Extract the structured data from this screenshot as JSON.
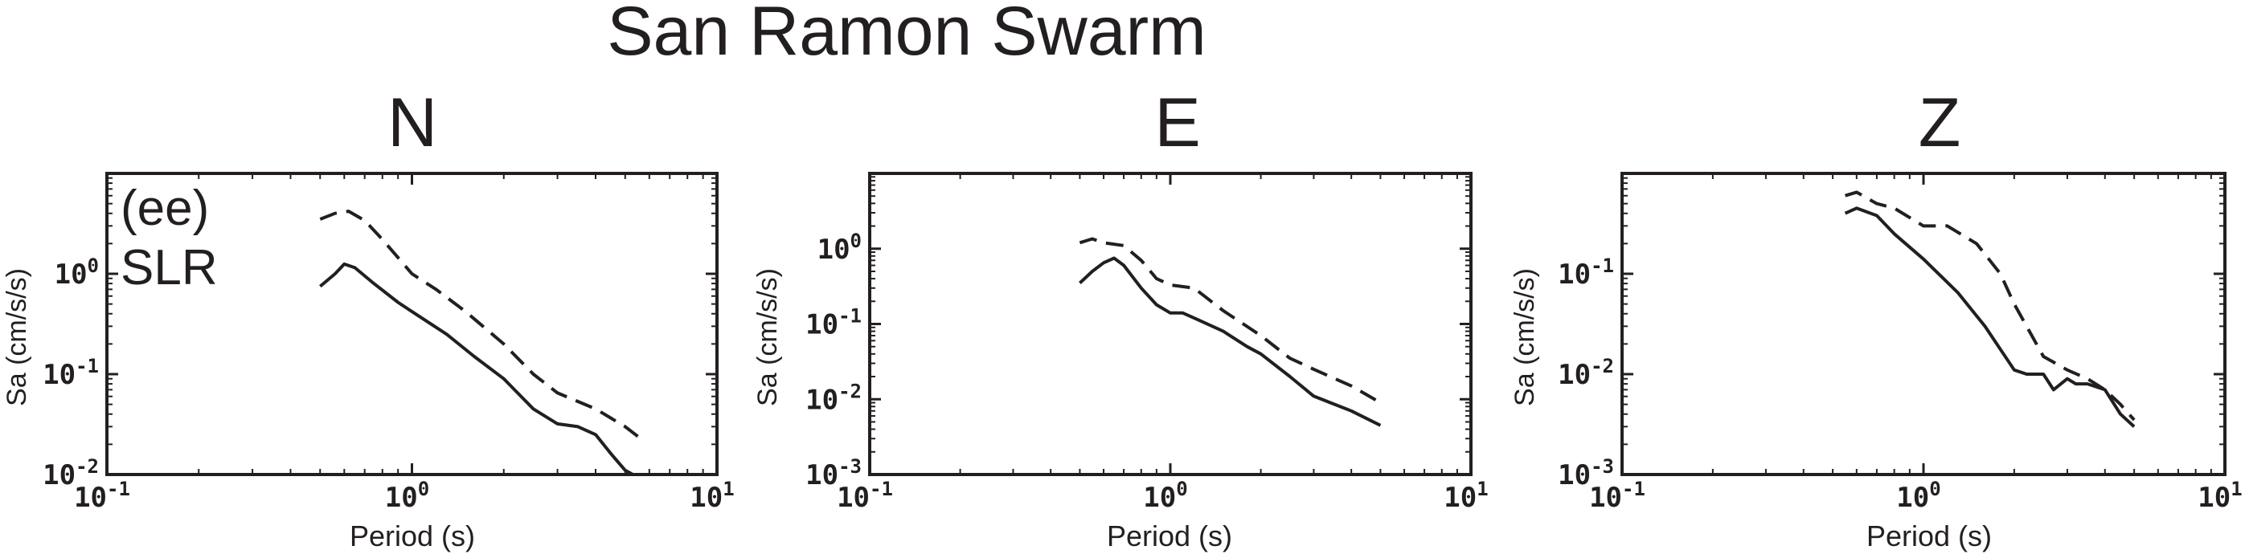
{
  "figure": {
    "suptitle": "San Ramon Swarm"
  },
  "chart_data": [
    {
      "type": "line",
      "title": "N",
      "xlabel": "Period (s)",
      "ylabel": "Sa (cm/s/s)",
      "xscale": "log",
      "yscale": "log",
      "xlim": [
        0.1,
        10
      ],
      "ylim": [
        0.01,
        10
      ],
      "x_ticks": [
        0.1,
        1,
        10
      ],
      "x_tick_labels": [
        {
          "base": "10",
          "exp": "-1"
        },
        {
          "base": "10",
          "exp": "0"
        },
        {
          "base": "10",
          "exp": "1"
        }
      ],
      "y_ticks": [
        0.01,
        0.1,
        1
      ],
      "y_tick_labels": [
        {
          "base": "10",
          "exp": "-2"
        },
        {
          "base": "10",
          "exp": "-1"
        },
        {
          "base": "10",
          "exp": "0"
        }
      ],
      "annotation": [
        "(ee)",
        "SLR"
      ],
      "series": [
        {
          "style": "solid",
          "x": [
            0.5,
            0.56,
            0.6,
            0.65,
            0.75,
            0.9,
            1.0,
            1.3,
            1.6,
            2.0,
            2.5,
            3.0,
            3.5,
            4.0,
            4.5,
            5.0,
            5.3
          ],
          "y": [
            0.75,
            1.0,
            1.25,
            1.15,
            0.8,
            0.52,
            0.42,
            0.25,
            0.15,
            0.09,
            0.045,
            0.032,
            0.03,
            0.025,
            0.016,
            0.011,
            0.01
          ]
        },
        {
          "style": "dashed",
          "x": [
            0.5,
            0.56,
            0.62,
            0.7,
            0.8,
            1.0,
            1.2,
            1.5,
            2.0,
            2.5,
            3.0,
            4.0,
            5.0,
            5.5
          ],
          "y": [
            3.5,
            4.0,
            4.2,
            3.4,
            2.2,
            1.0,
            0.7,
            0.42,
            0.2,
            0.1,
            0.065,
            0.045,
            0.03,
            0.024
          ]
        }
      ]
    },
    {
      "type": "line",
      "title": "E",
      "xlabel": "Period (s)",
      "ylabel": "Sa (cm/s/s)",
      "xscale": "log",
      "yscale": "log",
      "xlim": [
        0.1,
        10
      ],
      "ylim": [
        0.001,
        10
      ],
      "x_ticks": [
        0.1,
        1,
        10
      ],
      "x_tick_labels": [
        {
          "base": "10",
          "exp": "-1"
        },
        {
          "base": "10",
          "exp": "0"
        },
        {
          "base": "10",
          "exp": "1"
        }
      ],
      "y_ticks": [
        0.001,
        0.01,
        0.1,
        1
      ],
      "y_tick_labels": [
        {
          "base": "10",
          "exp": "-3"
        },
        {
          "base": "10",
          "exp": "-2"
        },
        {
          "base": "10",
          "exp": "-1"
        },
        {
          "base": "10",
          "exp": "0"
        }
      ],
      "series": [
        {
          "style": "solid",
          "x": [
            0.5,
            0.55,
            0.6,
            0.65,
            0.7,
            0.8,
            0.9,
            1.0,
            1.1,
            1.2,
            1.5,
            1.8,
            2.0,
            2.5,
            3.0,
            4.0,
            5.0
          ],
          "y": [
            0.35,
            0.5,
            0.65,
            0.75,
            0.6,
            0.3,
            0.18,
            0.14,
            0.14,
            0.12,
            0.08,
            0.05,
            0.04,
            0.02,
            0.011,
            0.007,
            0.0045
          ]
        },
        {
          "style": "dashed",
          "x": [
            0.5,
            0.55,
            0.6,
            0.7,
            0.8,
            0.9,
            1.0,
            1.2,
            1.5,
            2.0,
            2.5,
            3.0,
            4.0,
            5.0
          ],
          "y": [
            1.2,
            1.35,
            1.2,
            1.1,
            0.7,
            0.4,
            0.33,
            0.3,
            0.15,
            0.07,
            0.035,
            0.025,
            0.015,
            0.009
          ]
        }
      ]
    },
    {
      "type": "line",
      "title": "Z",
      "xlabel": "Period (s)",
      "ylabel": "Sa (cm/s/s)",
      "xscale": "log",
      "yscale": "log",
      "xlim": [
        0.1,
        10
      ],
      "ylim": [
        0.001,
        1
      ],
      "x_ticks": [
        0.1,
        1,
        10
      ],
      "x_tick_labels": [
        {
          "base": "10",
          "exp": "-1"
        },
        {
          "base": "10",
          "exp": "0"
        },
        {
          "base": "10",
          "exp": "1"
        }
      ],
      "y_ticks": [
        0.001,
        0.01,
        0.1
      ],
      "y_tick_labels": [
        {
          "base": "10",
          "exp": "-3"
        },
        {
          "base": "10",
          "exp": "-2"
        },
        {
          "base": "10",
          "exp": "-1"
        }
      ],
      "series": [
        {
          "style": "solid",
          "x": [
            0.55,
            0.6,
            0.7,
            0.8,
            1.0,
            1.3,
            1.6,
            2.0,
            2.2,
            2.5,
            2.7,
            3.0,
            3.2,
            3.5,
            4.0,
            4.5,
            5.0
          ],
          "y": [
            0.4,
            0.45,
            0.38,
            0.25,
            0.14,
            0.065,
            0.03,
            0.011,
            0.01,
            0.01,
            0.007,
            0.009,
            0.008,
            0.008,
            0.007,
            0.004,
            0.003
          ]
        },
        {
          "style": "dashed",
          "x": [
            0.55,
            0.6,
            0.7,
            0.8,
            1.0,
            1.2,
            1.5,
            1.8,
            2.0,
            2.5,
            3.0,
            3.5,
            4.0,
            4.5,
            5.0
          ],
          "y": [
            0.6,
            0.65,
            0.5,
            0.45,
            0.3,
            0.3,
            0.2,
            0.1,
            0.05,
            0.015,
            0.011,
            0.009,
            0.007,
            0.005,
            0.0035
          ]
        }
      ]
    }
  ]
}
